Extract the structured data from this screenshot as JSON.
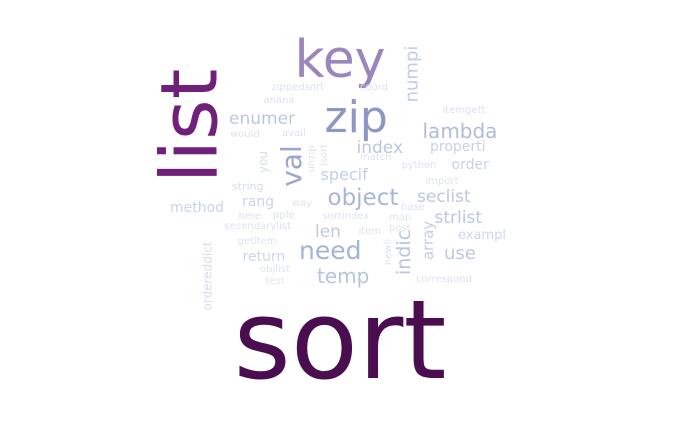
{
  "words": [
    {
      "text": "sort",
      "weight": 100,
      "color": "#4a0d4f"
    },
    {
      "text": "list",
      "weight": 62,
      "color": "#70207a"
    },
    {
      "text": "key",
      "weight": 45,
      "color": "#9a86bd"
    },
    {
      "text": "zip",
      "weight": 38,
      "color": "#8d96c4"
    },
    {
      "text": "val",
      "weight": 27,
      "color": "#9aa6cc"
    },
    {
      "text": "need",
      "weight": 22,
      "color": "#a5b4d4"
    },
    {
      "text": "object",
      "weight": 20,
      "color": "#a8b6d6"
    },
    {
      "text": "lambda",
      "weight": 17,
      "color": "#afbcd9"
    },
    {
      "text": "numpi",
      "weight": 16,
      "color": "#c1cde2"
    },
    {
      "text": "temp",
      "weight": 16,
      "color": "#b7c4dd"
    },
    {
      "text": "indic",
      "weight": 15,
      "color": "#b9c5de"
    },
    {
      "text": "index",
      "weight": 14,
      "color": "#bac6de"
    },
    {
      "text": "enumer",
      "weight": 14,
      "color": "#bbc7df"
    },
    {
      "text": "seclist",
      "weight": 14,
      "color": "#bcc8df"
    },
    {
      "text": "strlist",
      "weight": 14,
      "color": "#bcc8df"
    },
    {
      "text": "use",
      "weight": 13,
      "color": "#bdc9e0"
    },
    {
      "text": "len",
      "weight": 13,
      "color": "#bfcae0"
    },
    {
      "text": "array",
      "weight": 12,
      "color": "#c4cfe3"
    },
    {
      "text": "specif",
      "weight": 12,
      "color": "#c3cee2"
    },
    {
      "text": "properti",
      "weight": 11,
      "color": "#c8d2e5"
    },
    {
      "text": "order",
      "weight": 11,
      "color": "#c8d2e5"
    },
    {
      "text": "method",
      "weight": 11,
      "color": "#cad4e6"
    },
    {
      "text": "rang",
      "weight": 10,
      "color": "#cbd4e6"
    },
    {
      "text": "return",
      "weight": 10,
      "color": "#cdd6e7"
    },
    {
      "text": "exampl",
      "weight": 10,
      "color": "#ced7e8"
    },
    {
      "text": "you",
      "weight": 9,
      "color": "#d3dbea"
    },
    {
      "text": "ordereddict",
      "weight": 9,
      "color": "#d5ddeb"
    },
    {
      "text": "string",
      "weight": 8,
      "color": "#d6deec"
    },
    {
      "text": "itemgett",
      "weight": 7,
      "color": "#dbe2ee"
    },
    {
      "text": "zippedsort",
      "weight": 7,
      "color": "#dbe2ee"
    },
    {
      "text": "anana",
      "weight": 7,
      "color": "#dde3ee"
    },
    {
      "text": "coord",
      "weight": 7,
      "color": "#dde3ee"
    },
    {
      "text": "would",
      "weight": 7,
      "color": "#dce3ee"
    },
    {
      "text": "avail",
      "weight": 7,
      "color": "#dde3ee"
    },
    {
      "text": "unzip",
      "weight": 7,
      "color": "#dde3ee"
    },
    {
      "text": "lsort",
      "weight": 7,
      "color": "#dde3ee"
    },
    {
      "text": "match",
      "weight": 7,
      "color": "#dde3ee"
    },
    {
      "text": "python",
      "weight": 7,
      "color": "#dde3ee"
    },
    {
      "text": "import",
      "weight": 7,
      "color": "#dde3ee"
    },
    {
      "text": "way",
      "weight": 7,
      "color": "#dde3ee"
    },
    {
      "text": "base",
      "weight": 7,
      "color": "#dde3ee"
    },
    {
      "text": "here",
      "weight": 7,
      "color": "#dde3ee"
    },
    {
      "text": "pple",
      "weight": 7,
      "color": "#dde3ee"
    },
    {
      "text": "sortindex",
      "weight": 7,
      "color": "#dde3ee"
    },
    {
      "text": "map",
      "weight": 7,
      "color": "#dde3ee"
    },
    {
      "text": "secondarylist",
      "weight": 7,
      "color": "#dde3ee"
    },
    {
      "text": "item",
      "weight": 7,
      "color": "#dde3ee"
    },
    {
      "text": "post",
      "weight": 7,
      "color": "#dde3ee"
    },
    {
      "text": "getitem",
      "weight": 7,
      "color": "#dde3ee"
    },
    {
      "text": "newli",
      "weight": 7,
      "color": "#dde3ee"
    },
    {
      "text": "objlist",
      "weight": 7,
      "color": "#dde3ee"
    },
    {
      "text": "test",
      "weight": 7,
      "color": "#dde3ee"
    },
    {
      "text": "correspond",
      "weight": 7,
      "color": "#dde3ee"
    }
  ]
}
